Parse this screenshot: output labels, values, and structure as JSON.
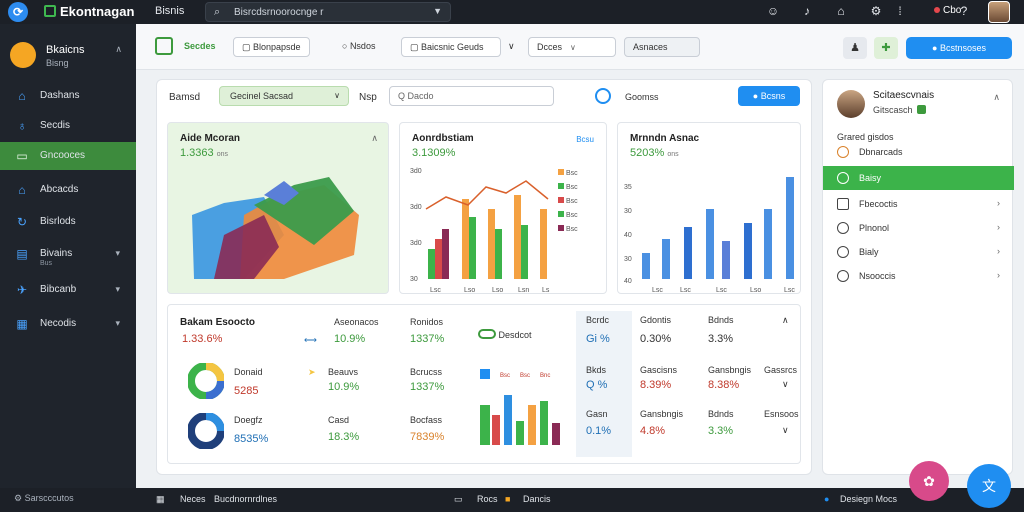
{
  "topbar": {
    "brand": "Ekontnagan",
    "menu": "Bisnis",
    "search_value": "Bisrcdsrnoorocnge r",
    "user_label": "Cbo"
  },
  "sidebar": {
    "profile_name": "Bkaicns",
    "profile_sub": "Bisng",
    "items": [
      {
        "label": "Dashans",
        "icon": "home-icon"
      },
      {
        "label": "Secdis",
        "icon": "leaf-icon"
      },
      {
        "label": "Gncooces",
        "icon": "card-icon",
        "active": true
      },
      {
        "label": "Abcacds",
        "icon": "house-icon"
      },
      {
        "label": "Bisrlods",
        "icon": "refresh-icon"
      },
      {
        "label": "Bivains",
        "sub": "Bus",
        "icon": "table-icon"
      },
      {
        "label": "Bibcanb",
        "icon": "plane-icon"
      },
      {
        "label": "Necodis",
        "icon": "grid-icon"
      }
    ],
    "footer": "Sarscccutos"
  },
  "bottombar": {
    "nav_left": "Neces",
    "nav_path": "Bucdnornrdlnes",
    "center_a": "Rocs",
    "center_b": "Dancis",
    "right": "Desiegn Mocs"
  },
  "toolbar": {
    "title": "Secdes",
    "btn1": "Blonpapsde",
    "toggle": "Nsdos",
    "btn2": "Baicsnic Geuds",
    "btn3": "Dcces",
    "btn4": "Asnaces",
    "primary": "Bcstnsoses"
  },
  "filters": {
    "label1": "Bamsd",
    "select_value": "Gecinel  Sacsad",
    "label2": "Nsp",
    "search_placeholder": "Q Dacdo",
    "filter_text": "Goomss",
    "apply": "Bcsns"
  },
  "panels": {
    "p1_title": "Aide Mcoran",
    "p1_value": "1.3363",
    "p1_unit": "ons",
    "p2_title": "Aonrdbstiam",
    "p2_value": "3.1309%",
    "p2_right": "Bcsu",
    "p3_title": "Mrnndn Asnac",
    "p3_value": "5203%",
    "p3_unit": "ons"
  },
  "bottom_panel": {
    "title": "Bakam Esoocto",
    "main_value": "1.33.6%",
    "col_a": "Aseonacos",
    "col_b": "Ronidos",
    "col_c": "Desdcot",
    "rows": [
      {
        "label": "Donaid",
        "value": "5285",
        "cb": "10.9%",
        "cc": "1337%",
        "cb_l": "Beauvs",
        "cc_l": "Bcrucss"
      },
      {
        "label": "Doegfz",
        "value": "8535%",
        "cb": "18.3%",
        "cc": "7839%",
        "cb_l": "Casd",
        "cc_l": "Bocfass"
      }
    ],
    "legend": [
      "Bsc",
      "Bsc",
      "Bnc"
    ]
  },
  "stats_table": {
    "headers": [
      "Bcrdc",
      "Gdontis",
      "Bdnds"
    ],
    "rows": [
      [
        "Gi %",
        "0.30%",
        "3.3%",
        "Gassrcs"
      ],
      [
        "Bkds",
        "0.39%",
        "8.39%",
        "Esnsoos"
      ],
      [
        "0.1%",
        "4.8%",
        "8.38%",
        "Esnsoos"
      ]
    ],
    "row_labels": [
      "Gascisns",
      "Gansbngis",
      "Gasn"
    ]
  },
  "rightcard": {
    "name": "Scitaescvnais",
    "sub": "Gitscasch",
    "section": "Grared gisdos",
    "first": "Dbnarcads",
    "items": [
      {
        "label": "Baisy",
        "active": true
      },
      {
        "label": "Fbecoctis"
      },
      {
        "label": "Plnonol"
      },
      {
        "label": "Bialy"
      },
      {
        "label": "Nsooccis"
      }
    ]
  },
  "colors": {
    "accent": "#1f8ef1",
    "active_nav": "#3d8b3d",
    "active_item": "#3cb34a",
    "sidebar": "#1f242c"
  }
}
